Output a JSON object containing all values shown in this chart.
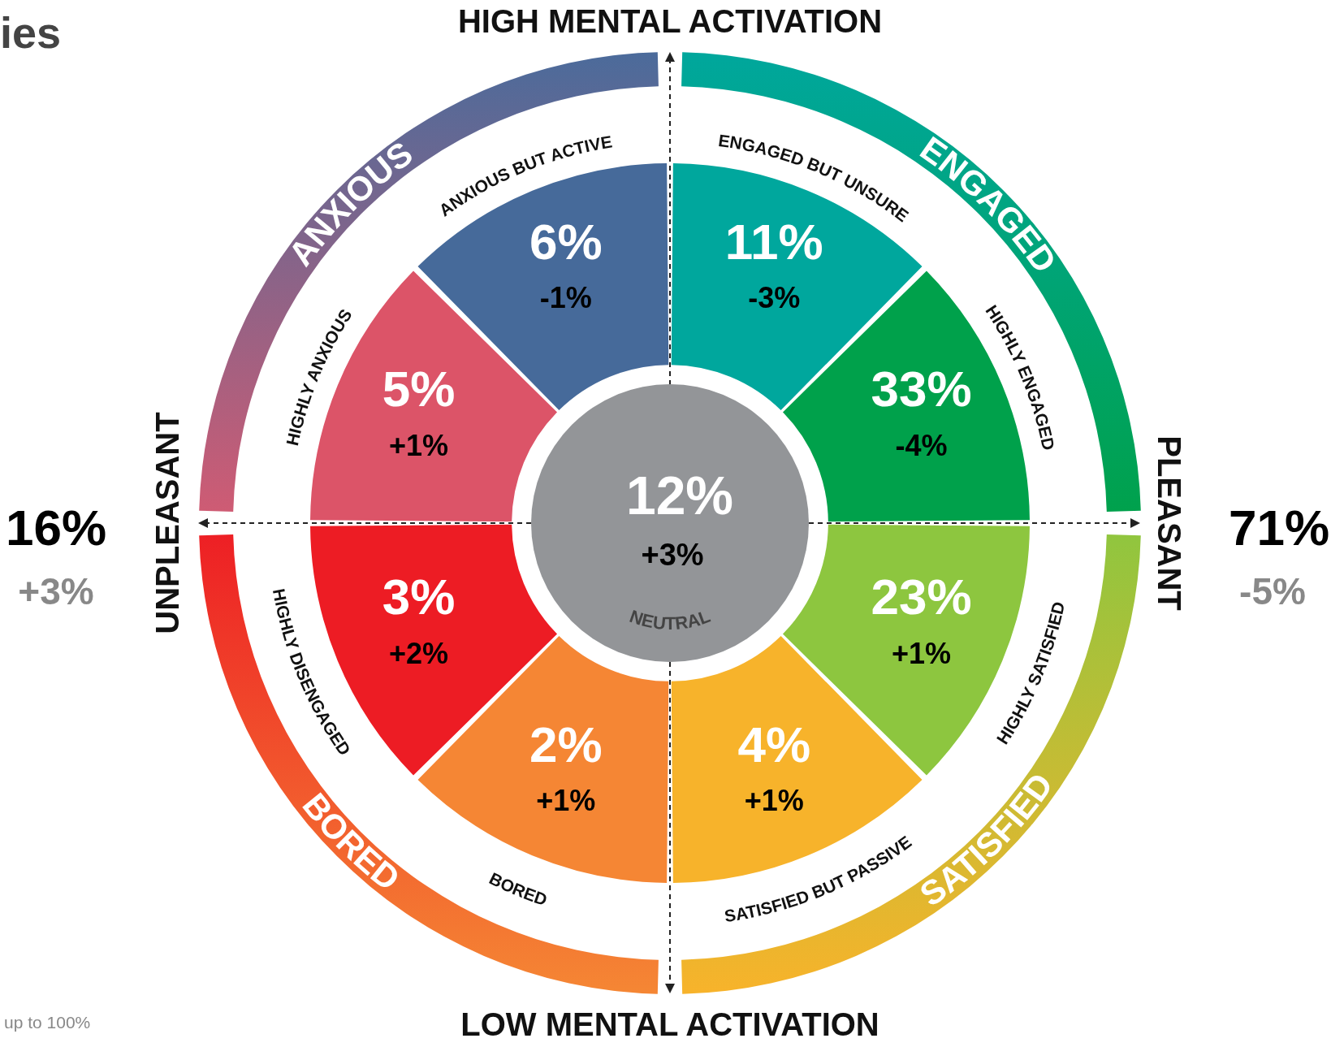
{
  "chart_data": {
    "type": "other",
    "title": "ies",
    "categories": [
      "ENGAGED BUT UNSURE",
      "HIGHLY ENGAGED",
      "HIGHLY SATISFIED",
      "SATISFIED BUT PASSIVE",
      "BORED",
      "HIGHLY DISENGAGED",
      "HIGHLY ANXIOUS",
      "ANXIOUS BUT ACTIVE",
      "NEUTRAL"
    ],
    "values": [
      11,
      33,
      23,
      4,
      2,
      3,
      5,
      6,
      12
    ],
    "value_labels": [
      "11%",
      "33%",
      "23%",
      "4%",
      "2%",
      "3%",
      "5%",
      "6%",
      "12%"
    ],
    "colors": [
      "#00a79d",
      "#00a14b",
      "#8dc63f",
      "#f7b32b",
      "#f58634",
      "#ed1c24",
      "#dc5468",
      "#466a9a",
      "#939598"
    ],
    "totals": [
      "16%",
      "71%"
    ],
    "annotations": [
      {
        "text": "-3%",
        "x": "ENGAGED BUT UNSURE"
      },
      {
        "text": "-4%",
        "x": "HIGHLY ENGAGED"
      },
      {
        "text": "+1%",
        "x": "HIGHLY SATISFIED"
      },
      {
        "text": "+1%",
        "x": "SATISFIED BUT PASSIVE"
      },
      {
        "text": "+1%",
        "x": "BORED"
      },
      {
        "text": "+2%",
        "x": "HIGHLY DISENGAGED"
      },
      {
        "text": "+1%",
        "x": "HIGHLY ANXIOUS"
      },
      {
        "text": "-1%",
        "x": "ANXIOUS BUT ACTIVE"
      },
      {
        "text": "+3%",
        "x": "NEUTRAL"
      },
      "HIGH MENTAL ACTIVATION",
      "PLEASANT",
      "LOW MENTAL ACTIVATION",
      "UNPLEASANT",
      "ENGAGED",
      "SATISFIED",
      "BORED",
      "ANXIOUS",
      "+3%",
      "-5%",
      "up to 100%"
    ]
  }
}
